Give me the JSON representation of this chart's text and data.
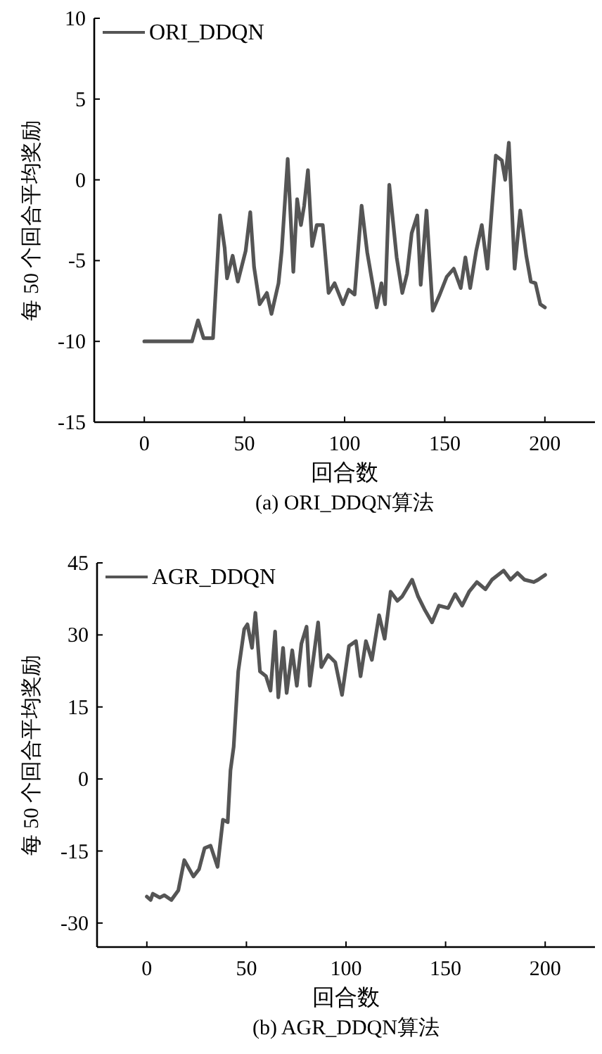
{
  "chart_data": [
    {
      "type": "line",
      "title": "(a) ORI_DDQN算法",
      "xlabel": "回合数",
      "ylabel": "每 50 个回合平均奖励",
      "legend": "top left",
      "grid": false,
      "xlim": [
        -25,
        225
      ],
      "ylim": [
        -15,
        10
      ],
      "xticks": [
        0,
        50,
        100,
        150,
        200
      ],
      "yticks": [
        -15,
        -10,
        -5,
        0,
        5,
        10
      ],
      "series": [
        {
          "name": "ORI_DDQN",
          "color": "#555555",
          "x": [
            0,
            23.8,
            26.8,
            29.6,
            34.3,
            37.8,
            40.1,
            41.3,
            44.1,
            46.7,
            50.6,
            52.9,
            54.8,
            57.6,
            61.2,
            63.5,
            67,
            68.6,
            71.6,
            74.4,
            76.3,
            78.2,
            79.8,
            81.7,
            83.8,
            86.1,
            89.1,
            92,
            95,
            99.2,
            102,
            105,
            108.5,
            111.3,
            116,
            118.4,
            120.2,
            122.3,
            126,
            128.8,
            131.2,
            133.5,
            136.3,
            138,
            140.9,
            144,
            147.5,
            151,
            154.5,
            158,
            160.3,
            162.7,
            165.7,
            168.5,
            171.3,
            175.5,
            178.5,
            180.2,
            182,
            184.9,
            187.7,
            190.7,
            193,
            195.3,
            197.7,
            200
          ],
          "values": [
            -10,
            -10,
            -8.7,
            -9.8,
            -9.8,
            -2.2,
            -4.2,
            -6.1,
            -4.7,
            -6.3,
            -4.4,
            -2,
            -5.4,
            -7.7,
            -7,
            -8.3,
            -6.4,
            -4.4,
            1.3,
            -5.7,
            -1.2,
            -2.8,
            -1.6,
            0.6,
            -4.1,
            -2.8,
            -2.8,
            -7,
            -6.4,
            -7.7,
            -6.8,
            -7.1,
            -1.6,
            -4.5,
            -7.9,
            -6.4,
            -7.7,
            -0.3,
            -4.8,
            -7,
            -5.8,
            -3.3,
            -2.2,
            -6.5,
            -1.9,
            -8.1,
            -7.1,
            -6,
            -5.5,
            -6.7,
            -4.8,
            -6.7,
            -4.4,
            -2.8,
            -5.5,
            1.5,
            1.2,
            0,
            2.3,
            -5.5,
            -1.9,
            -4.7,
            -6.3,
            -6.4,
            -7.7,
            -7.9
          ]
        }
      ]
    },
    {
      "type": "line",
      "title": "(b) AGR_DDQN算法",
      "xlabel": "回合数",
      "ylabel": "每 50 个回合平均奖励",
      "legend": "top left",
      "grid": false,
      "xlim": [
        -25,
        225
      ],
      "ylim": [
        -35,
        45
      ],
      "xticks": [
        0,
        50,
        100,
        150,
        200
      ],
      "yticks": [
        -30,
        -15,
        0,
        15,
        30,
        45
      ],
      "series": [
        {
          "name": "AGR_DDQN",
          "color": "#555555",
          "x": [
            0,
            1.9,
            3,
            6.5,
            8.8,
            12.3,
            15.8,
            18.8,
            23.4,
            26.2,
            29,
            32,
            35.5,
            38.2,
            40.6,
            42,
            43.6,
            45.9,
            48.9,
            50.5,
            52.8,
            54.5,
            56.8,
            59.8,
            62.1,
            64.4,
            66,
            68.4,
            70.2,
            73,
            75.3,
            77.6,
            80.2,
            81.8,
            86,
            87.6,
            91,
            94.6,
            98,
            101.5,
            105,
            107.3,
            110,
            113,
            116.6,
            119.4,
            122.4,
            125.8,
            128.2,
            133.2,
            136.2,
            139.7,
            143.2,
            146.7,
            151.3,
            154.8,
            158.3,
            161.8,
            165.7,
            170,
            173.3,
            179.1,
            182.6,
            186.1,
            189.6,
            194.3,
            196.5,
            200
          ],
          "values": [
            -24.5,
            -25.2,
            -23.9,
            -24.7,
            -24.2,
            -25.2,
            -23.2,
            -16.9,
            -20.3,
            -18.8,
            -14.4,
            -13.9,
            -18.3,
            -8.5,
            -9,
            1.8,
            6.7,
            22.4,
            31.2,
            32.2,
            27.3,
            34.6,
            22.4,
            21.4,
            18.4,
            30.7,
            17,
            27.3,
            17.9,
            26.8,
            19.4,
            28.2,
            31.7,
            19.4,
            32.6,
            23.3,
            25.8,
            24.3,
            17.5,
            27.7,
            28.7,
            21.4,
            28.7,
            24.8,
            34.1,
            29.2,
            39,
            37.1,
            38,
            41.5,
            38,
            35.1,
            32.6,
            36.1,
            35.6,
            38.5,
            36.1,
            39,
            41,
            39.5,
            41.5,
            43.4,
            41.5,
            42.9,
            41.5,
            41,
            41.5,
            42.5
          ]
        }
      ]
    }
  ]
}
